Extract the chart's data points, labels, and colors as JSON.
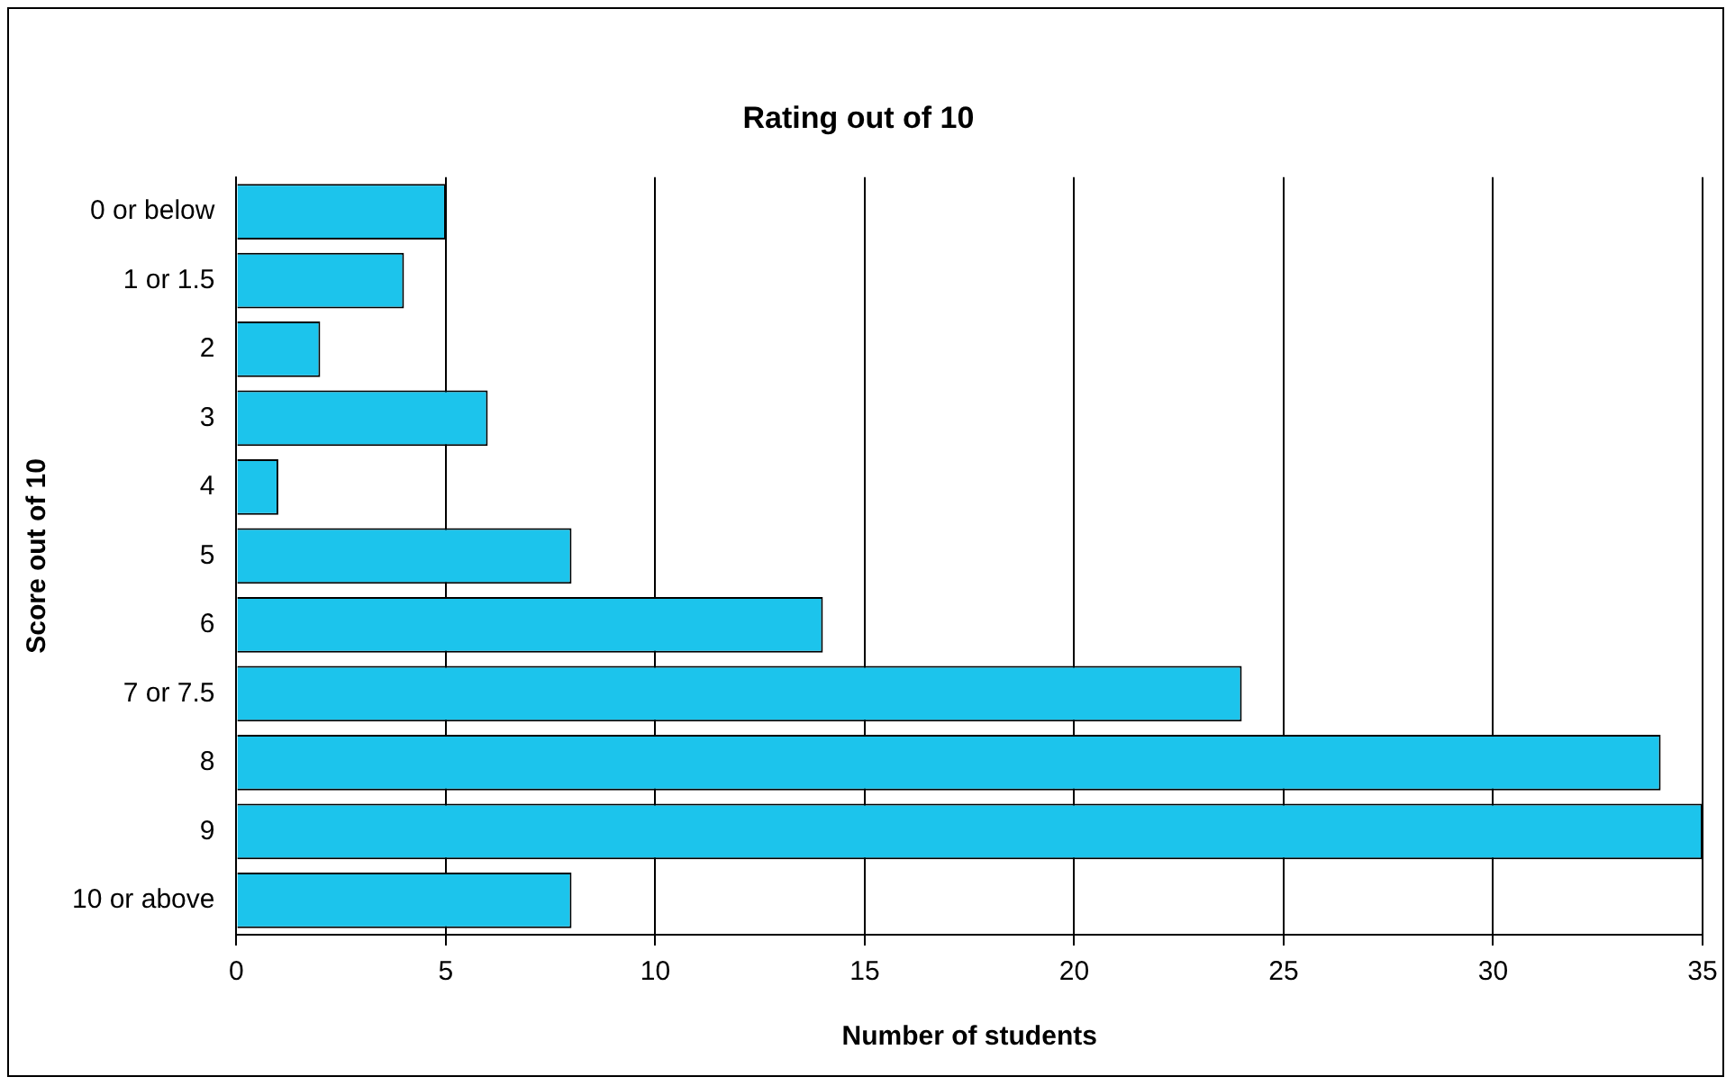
{
  "chart_data": {
    "type": "bar",
    "orientation": "horizontal",
    "title": "Rating out of 10",
    "xlabel": "Number of students",
    "ylabel": "Score out of 10",
    "categories": [
      "0 or below",
      "1 or 1.5",
      "2",
      "3",
      "4",
      "5",
      "6",
      "7 or 7.5",
      "8",
      "9",
      "10 or above"
    ],
    "values": [
      5,
      4,
      2,
      6,
      1,
      8,
      14,
      24,
      34,
      35,
      8
    ],
    "color": "#1cc4ec",
    "xlim": [
      0,
      35
    ],
    "xticks": [
      0,
      5,
      10,
      15,
      20,
      25,
      30,
      35
    ],
    "grid": "x",
    "legend": false
  }
}
